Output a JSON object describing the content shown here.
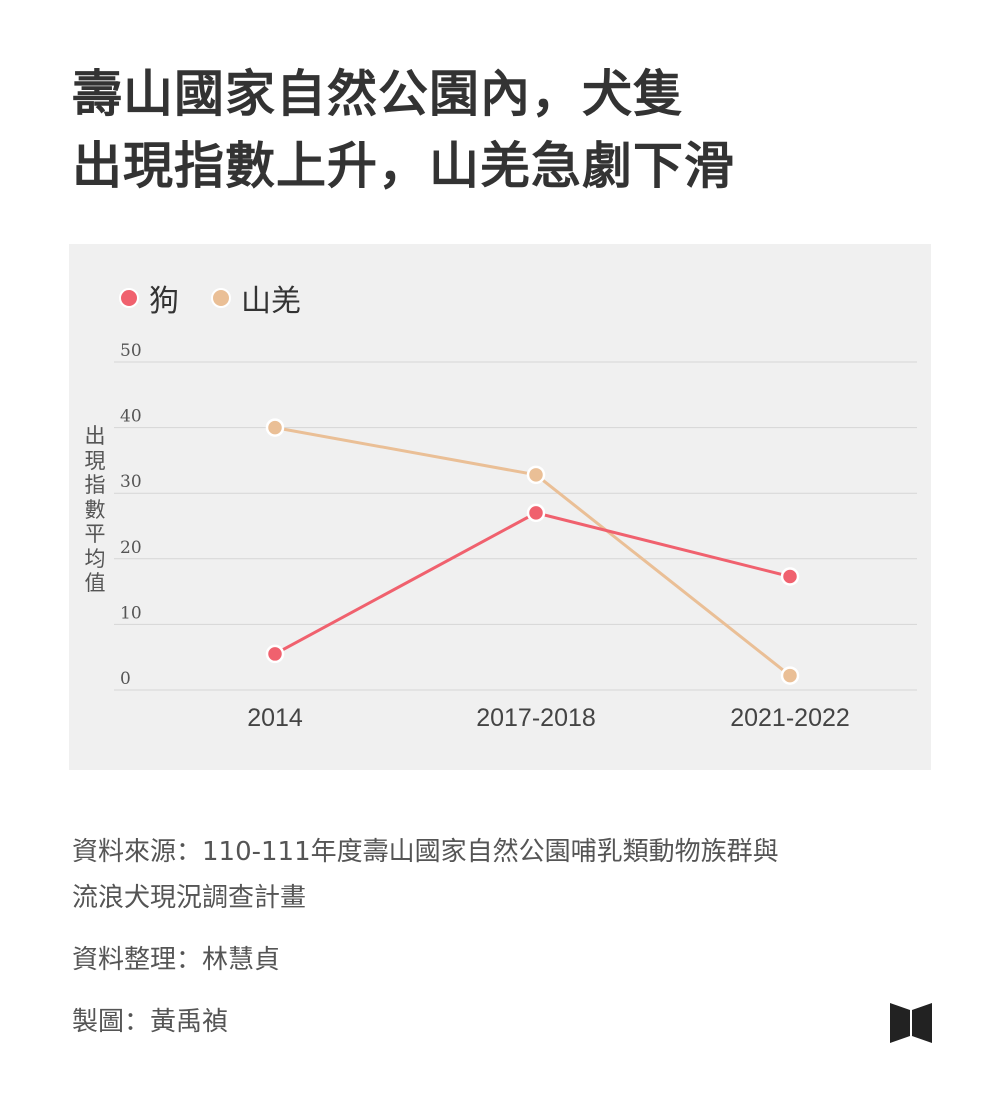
{
  "title": {
    "line1": "壽山國家自然公園內，犬隻",
    "line2": "出現指數上升，山羌急劇下滑"
  },
  "chart_data": {
    "type": "line",
    "categories": [
      "2014",
      "2017-2018",
      "2021-2022"
    ],
    "series": [
      {
        "name": "狗",
        "color": "#f0616e",
        "values": [
          5.5,
          27,
          17.3
        ]
      },
      {
        "name": "山羌",
        "color": "#eabf96",
        "values": [
          40,
          32.8,
          2.2
        ]
      }
    ],
    "ylabel": "出現指數平均值",
    "yticks": [
      "50",
      "40",
      "30",
      "20",
      "10",
      "0"
    ],
    "ylim": [
      0,
      50
    ],
    "grid": true,
    "legend_position": "top-left",
    "background": "#f0f0f0"
  },
  "footer": {
    "source_line1": "資料來源：110-111年度壽山國家自然公園哺乳類動物族群與",
    "source_line2": "流浪犬現況調查計畫",
    "compiled": "資料整理：林慧貞",
    "graphic": "製圖：黃禹禎",
    "logo_icon": "publisher-logo-icon"
  }
}
